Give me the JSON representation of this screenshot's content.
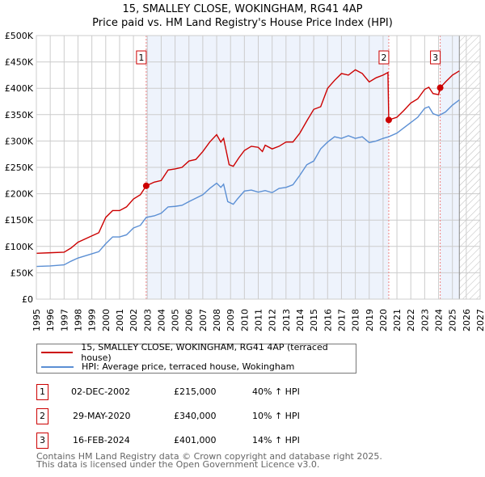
{
  "chart_data": {
    "type": "line",
    "title": "15, SMALLEY CLOSE, WOKINGHAM, RG41 4AP",
    "subtitle": "Price paid vs. HM Land Registry's House Price Index (HPI)",
    "xlim": [
      1995,
      2027
    ],
    "ylim": [
      0,
      500000
    ],
    "x_ticks": [
      "1995",
      "1996",
      "1997",
      "1998",
      "1999",
      "2000",
      "2001",
      "2002",
      "2003",
      "2004",
      "2005",
      "2006",
      "2007",
      "2008",
      "2009",
      "2010",
      "2011",
      "2012",
      "2013",
      "2014",
      "2015",
      "2016",
      "2017",
      "2018",
      "2019",
      "2020",
      "2021",
      "2022",
      "2023",
      "2024",
      "2025",
      "2026",
      "2027"
    ],
    "y_ticks": [
      {
        "v": 0,
        "label": "£0"
      },
      {
        "v": 50000,
        "label": "£50K"
      },
      {
        "v": 100000,
        "label": "£100K"
      },
      {
        "v": 150000,
        "label": "£150K"
      },
      {
        "v": 200000,
        "label": "£200K"
      },
      {
        "v": 250000,
        "label": "£250K"
      },
      {
        "v": 300000,
        "label": "£300K"
      },
      {
        "v": 350000,
        "label": "£350K"
      },
      {
        "v": 400000,
        "label": "£400K"
      },
      {
        "v": 450000,
        "label": "£450K"
      },
      {
        "v": 500000,
        "label": "£500K"
      }
    ],
    "grid": true,
    "series": [
      {
        "name": "15, SMALLEY CLOSE, WOKINGHAM, RG41 4AP (terraced house)",
        "color": "#cc0000",
        "points": [
          [
            1995,
            87
          ],
          [
            1996,
            88
          ],
          [
            1997,
            89
          ],
          [
            1997.5,
            97
          ],
          [
            1998,
            108
          ],
          [
            1999,
            120
          ],
          [
            1999.5,
            126
          ],
          [
            2000,
            155
          ],
          [
            2000.5,
            168
          ],
          [
            2001,
            168
          ],
          [
            2001.5,
            175
          ],
          [
            2002,
            190
          ],
          [
            2002.5,
            198
          ],
          [
            2002.92,
            215
          ],
          [
            2003.5,
            222
          ],
          [
            2004,
            225
          ],
          [
            2004.5,
            245
          ],
          [
            2005,
            247
          ],
          [
            2005.5,
            250
          ],
          [
            2006,
            262
          ],
          [
            2006.5,
            265
          ],
          [
            2007,
            280
          ],
          [
            2007.5,
            298
          ],
          [
            2008,
            312
          ],
          [
            2008.3,
            298
          ],
          [
            2008.5,
            305
          ],
          [
            2008.9,
            255
          ],
          [
            2009.2,
            252
          ],
          [
            2009.6,
            268
          ],
          [
            2010,
            282
          ],
          [
            2010.5,
            290
          ],
          [
            2011,
            288
          ],
          [
            2011.3,
            280
          ],
          [
            2011.5,
            292
          ],
          [
            2012,
            285
          ],
          [
            2012.5,
            290
          ],
          [
            2013,
            298
          ],
          [
            2013.5,
            298
          ],
          [
            2014,
            315
          ],
          [
            2014.5,
            338
          ],
          [
            2015,
            360
          ],
          [
            2015.5,
            365
          ],
          [
            2016,
            400
          ],
          [
            2016.5,
            415
          ],
          [
            2017,
            428
          ],
          [
            2017.5,
            425
          ],
          [
            2018,
            435
          ],
          [
            2018.5,
            428
          ],
          [
            2019,
            412
          ],
          [
            2019.5,
            420
          ],
          [
            2020,
            425
          ],
          [
            2020.35,
            430
          ],
          [
            2020.41,
            340
          ],
          [
            2021,
            345
          ],
          [
            2021.5,
            358
          ],
          [
            2022,
            372
          ],
          [
            2022.5,
            380
          ],
          [
            2023,
            398
          ],
          [
            2023.3,
            402
          ],
          [
            2023.6,
            390
          ],
          [
            2024,
            388
          ],
          [
            2024.12,
            401
          ],
          [
            2024.5,
            412
          ],
          [
            2025,
            425
          ],
          [
            2025.5,
            433
          ]
        ]
      },
      {
        "name": "HPI: Average price, terraced house, Wokingham",
        "color": "#5b8fd4",
        "points": [
          [
            1995,
            62
          ],
          [
            1996,
            63
          ],
          [
            1997,
            65
          ],
          [
            1997.5,
            72
          ],
          [
            1998,
            78
          ],
          [
            1999,
            86
          ],
          [
            1999.5,
            90
          ],
          [
            2000,
            105
          ],
          [
            2000.5,
            118
          ],
          [
            2001,
            118
          ],
          [
            2001.5,
            122
          ],
          [
            2002,
            135
          ],
          [
            2002.5,
            140
          ],
          [
            2002.92,
            155
          ],
          [
            2003.5,
            158
          ],
          [
            2004,
            163
          ],
          [
            2004.5,
            175
          ],
          [
            2005,
            176
          ],
          [
            2005.5,
            178
          ],
          [
            2006,
            185
          ],
          [
            2007,
            198
          ],
          [
            2007.5,
            210
          ],
          [
            2008,
            220
          ],
          [
            2008.3,
            212
          ],
          [
            2008.5,
            218
          ],
          [
            2008.8,
            185
          ],
          [
            2009.2,
            180
          ],
          [
            2009.5,
            190
          ],
          [
            2010,
            205
          ],
          [
            2010.5,
            207
          ],
          [
            2011,
            203
          ],
          [
            2011.5,
            206
          ],
          [
            2012,
            202
          ],
          [
            2012.5,
            210
          ],
          [
            2013,
            212
          ],
          [
            2013.5,
            217
          ],
          [
            2014,
            235
          ],
          [
            2014.5,
            255
          ],
          [
            2015,
            262
          ],
          [
            2015.5,
            285
          ],
          [
            2016,
            298
          ],
          [
            2016.5,
            308
          ],
          [
            2017,
            305
          ],
          [
            2017.5,
            310
          ],
          [
            2018,
            305
          ],
          [
            2018.5,
            308
          ],
          [
            2019,
            297
          ],
          [
            2019.5,
            300
          ],
          [
            2020,
            305
          ],
          [
            2020.4,
            308
          ],
          [
            2021,
            315
          ],
          [
            2021.5,
            325
          ],
          [
            2022,
            335
          ],
          [
            2022.5,
            345
          ],
          [
            2023,
            362
          ],
          [
            2023.3,
            365
          ],
          [
            2023.6,
            352
          ],
          [
            2024,
            348
          ],
          [
            2024.5,
            355
          ],
          [
            2025,
            368
          ],
          [
            2025.5,
            378
          ]
        ]
      }
    ],
    "value_unit": "thousand GBP",
    "sales": [
      {
        "n": "1",
        "x": 2002.92,
        "price": 215,
        "date": "02-DEC-2002",
        "price_label": "£215,000",
        "hpi": "40% ↑ HPI"
      },
      {
        "n": "2",
        "x": 2020.41,
        "price": 340,
        "date": "29-MAY-2020",
        "price_label": "£340,000",
        "hpi": "10% ↑ HPI"
      },
      {
        "n": "3",
        "x": 2024.12,
        "price": 401,
        "date": "16-FEB-2024",
        "price_label": "£401,000",
        "hpi": "14% ↑ HPI"
      }
    ],
    "data_end": 2025.5,
    "legend_position": "bottom"
  },
  "footer": {
    "line1": "Contains HM Land Registry data © Crown copyright and database right 2025.",
    "line2": "This data is licensed under the Open Government Licence v3.0."
  }
}
